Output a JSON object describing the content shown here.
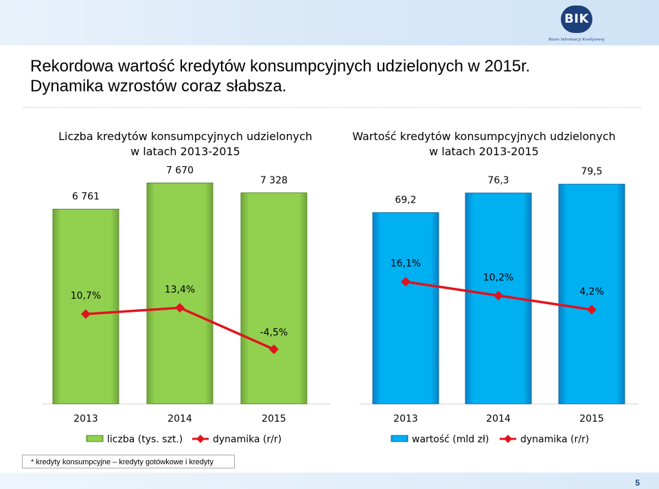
{
  "header": {
    "title_line1": "Rekordowa wartość kredytów konsumpcyjnych udzielonych w 2015r.",
    "title_line2": "Dynamika wzrostów coraz słabsza.",
    "logo_text": "BIK",
    "logo_subtitle": "Biuro Informacji Kredytowej"
  },
  "colors": {
    "green_bar": "#92d050",
    "blue_bar": "#00b0f0",
    "line": "#e0141e",
    "axis": "#d0d0d0"
  },
  "chart_data": [
    {
      "type": "bar",
      "title_line1": "Liczba kredytów konsumpcyjnych udzielonych",
      "title_line2": "w latach 2013-2015",
      "categories": [
        "2013",
        "2014",
        "2015"
      ],
      "series": [
        {
          "name": "liczba (tys. szt.)",
          "type": "bar",
          "values": [
            6761,
            7670,
            7328
          ],
          "labels": [
            "6 761",
            "7 670",
            "7 328"
          ]
        },
        {
          "name": "dynamika (r/r)",
          "type": "line",
          "values": [
            10.7,
            13.4,
            -4.5
          ],
          "labels": [
            "10,7%",
            "13,4%",
            "-4,5%"
          ]
        }
      ],
      "ylim_bar": [
        0,
        8300
      ],
      "ylim_line": [
        -28,
        75
      ],
      "grid": false,
      "legend": "bottom"
    },
    {
      "type": "bar",
      "title_line1": "Wartość kredytów konsumpcyjnych udzielonych",
      "title_line2": "w latach 2013-2015",
      "categories": [
        "2013",
        "2014",
        "2015"
      ],
      "series": [
        {
          "name": "wartość (mld zł)",
          "type": "bar",
          "values": [
            69.2,
            76.3,
            79.5
          ],
          "labels": [
            "69,2",
            "76,3",
            "79,5"
          ]
        },
        {
          "name": "dynamika (r/r)",
          "type": "line",
          "values": [
            16.1,
            10.2,
            4.2
          ],
          "labels": [
            "16,1%",
            "10,2%",
            "4,2%"
          ]
        }
      ],
      "ylim_bar": [
        0,
        86.5
      ],
      "ylim_line": [
        -36,
        66
      ],
      "grid": false,
      "legend": "bottom"
    }
  ],
  "footnote": "* kredyty konsumpcyjne – kredyty gotówkowe i kredyty ratalne",
  "page_number": "5"
}
